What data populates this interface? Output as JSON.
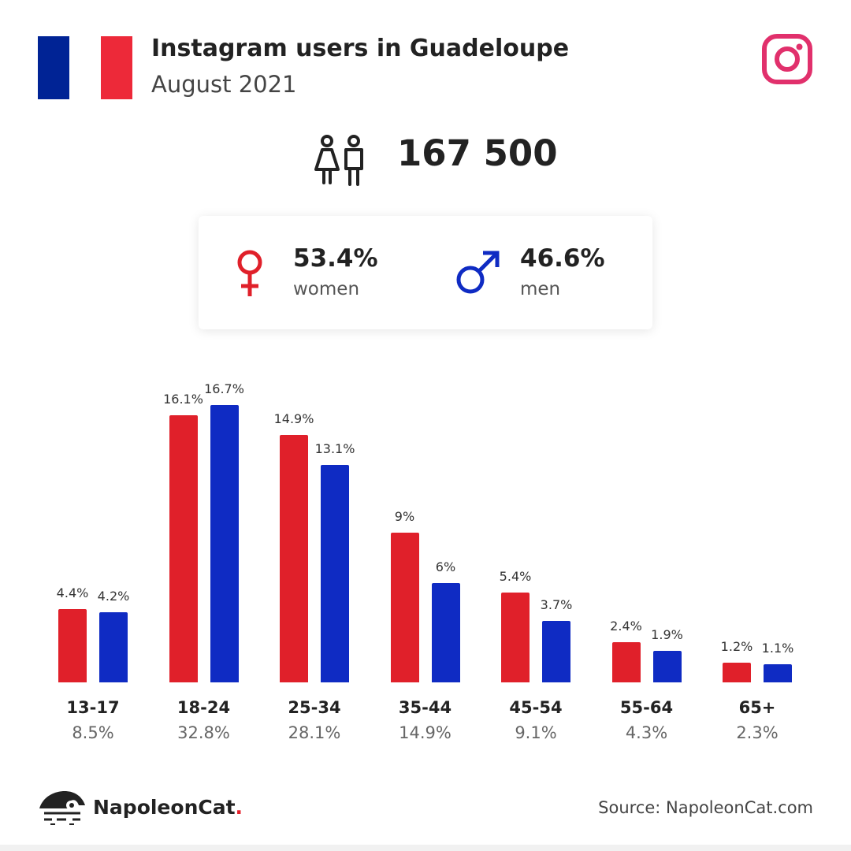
{
  "header": {
    "title": "Instagram users in Guadeloupe",
    "subtitle": "August 2021",
    "flag_colors": [
      "#002395",
      "#ffffff",
      "#ed2939"
    ],
    "platform_icon": "instagram-icon",
    "platform_color": "#e1306c"
  },
  "total": {
    "icon": "people-icon",
    "value": "167 500"
  },
  "gender": {
    "women": {
      "pct": "53.4%",
      "label": "women",
      "icon": "female-icon",
      "color": "#e0202a"
    },
    "men": {
      "pct": "46.6%",
      "label": "men",
      "icon": "male-icon",
      "color": "#0f2bc3"
    }
  },
  "chart_data": {
    "type": "bar",
    "categories": [
      "13-17",
      "18-24",
      "25-34",
      "35-44",
      "45-54",
      "55-64",
      "65+"
    ],
    "category_totals": [
      "8.5%",
      "32.8%",
      "28.1%",
      "14.9%",
      "9.1%",
      "4.3%",
      "2.3%"
    ],
    "series": [
      {
        "color": "#e0202a",
        "values": [
          4.4,
          16.1,
          14.9,
          9,
          5.4,
          2.4,
          1.2
        ],
        "labels": [
          "4.4%",
          "16.1%",
          "14.9%",
          "9%",
          "5.4%",
          "2.4%",
          "1.2%"
        ]
      },
      {
        "color": "#0f2bc3",
        "values": [
          4.2,
          16.7,
          13.1,
          6,
          3.7,
          1.9,
          1.1
        ],
        "labels": [
          "4.2%",
          "16.7%",
          "13.1%",
          "6%",
          "3.7%",
          "1.9%",
          "1.1%"
        ]
      }
    ],
    "ylim": [
      0,
      16.7
    ],
    "grid": false,
    "legend": "none"
  },
  "footer": {
    "logo_icon": "napoleoncat-logo-icon",
    "brand": "NapoleonCat",
    "brand_dot": ".",
    "source": "Source: NapoleonCat.com"
  }
}
